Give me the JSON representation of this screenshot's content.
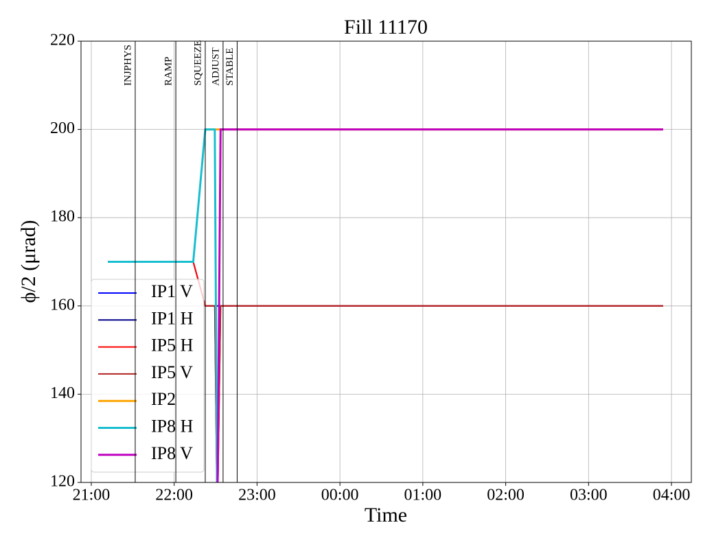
{
  "chart_data": {
    "type": "line",
    "title": "Fill 11170",
    "xlabel": "Time",
    "ylabel": "ϕ/2 (μrad)",
    "x": [
      21.2,
      22.23,
      22.375,
      22.49,
      22.52,
      22.56,
      27.9
    ],
    "series": [
      {
        "name": "IP1 V",
        "color": "#0000ff",
        "values": [
          170,
          170,
          200,
          200,
          200,
          200,
          200
        ]
      },
      {
        "name": "IP1 H",
        "color": "#00008b",
        "values": [
          170,
          170,
          160,
          160,
          160,
          160,
          160
        ]
      },
      {
        "name": "IP5 H",
        "color": "#ff0000",
        "values": [
          170,
          170,
          160,
          160,
          110,
          160,
          160
        ]
      },
      {
        "name": "IP5 V",
        "color": "#b22222",
        "values": [
          null,
          null,
          160,
          160,
          110,
          160,
          160
        ]
      },
      {
        "name": "IP2",
        "color": "#ffa500",
        "values": [
          null,
          null,
          200,
          200,
          200,
          200,
          200
        ]
      },
      {
        "name": "IP8 H",
        "color": "#17becf",
        "values": [
          170,
          170,
          200,
          200,
          110,
          null,
          null
        ]
      },
      {
        "name": "IP8 V",
        "color": "#bf00bf",
        "values": [
          null,
          null,
          null,
          null,
          110,
          200,
          200
        ]
      }
    ],
    "phases": [
      {
        "name": "INJPHYS",
        "x": 21.53
      },
      {
        "name": "RAMP",
        "x": 22.02
      },
      {
        "name": "SQUEEZE",
        "x": 22.375
      },
      {
        "name": "ADJUST",
        "x": 22.59
      },
      {
        "name": "STABLE",
        "x": 22.76
      }
    ],
    "xlim": [
      20.876,
      28.24
    ],
    "ylim": [
      120,
      220
    ],
    "xticks": [
      {
        "value": 21,
        "label": "21:00"
      },
      {
        "value": 22,
        "label": "22:00"
      },
      {
        "value": 23,
        "label": "23:00"
      },
      {
        "value": 24,
        "label": "00:00"
      },
      {
        "value": 25,
        "label": "01:00"
      },
      {
        "value": 26,
        "label": "02:00"
      },
      {
        "value": 27,
        "label": "03:00"
      },
      {
        "value": 28,
        "label": "04:00"
      }
    ],
    "yticks": [
      120,
      140,
      160,
      180,
      200,
      220
    ],
    "grid": true,
    "legend": "lower left"
  }
}
